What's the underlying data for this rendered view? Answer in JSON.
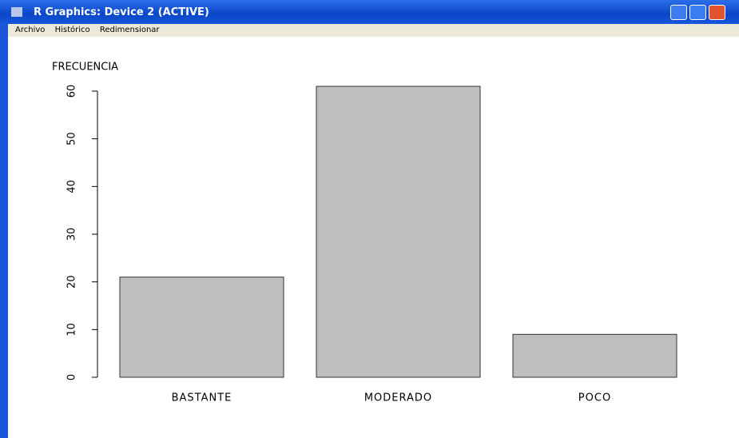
{
  "window": {
    "title": "R Graphics: Device 2 (ACTIVE)",
    "menu": [
      "Archivo",
      "Histórico",
      "Redimensionar"
    ]
  },
  "chart_data": {
    "type": "bar",
    "ylabel": "FRECUENCIA",
    "categories": [
      "BASTANTE",
      "MODERADO",
      "POCO"
    ],
    "values": [
      21,
      61,
      9
    ],
    "color": "#bebebe",
    "ylim": [
      0,
      60
    ],
    "yticks": [
      0,
      10,
      20,
      30,
      40,
      50,
      60
    ],
    "grid": false
  }
}
